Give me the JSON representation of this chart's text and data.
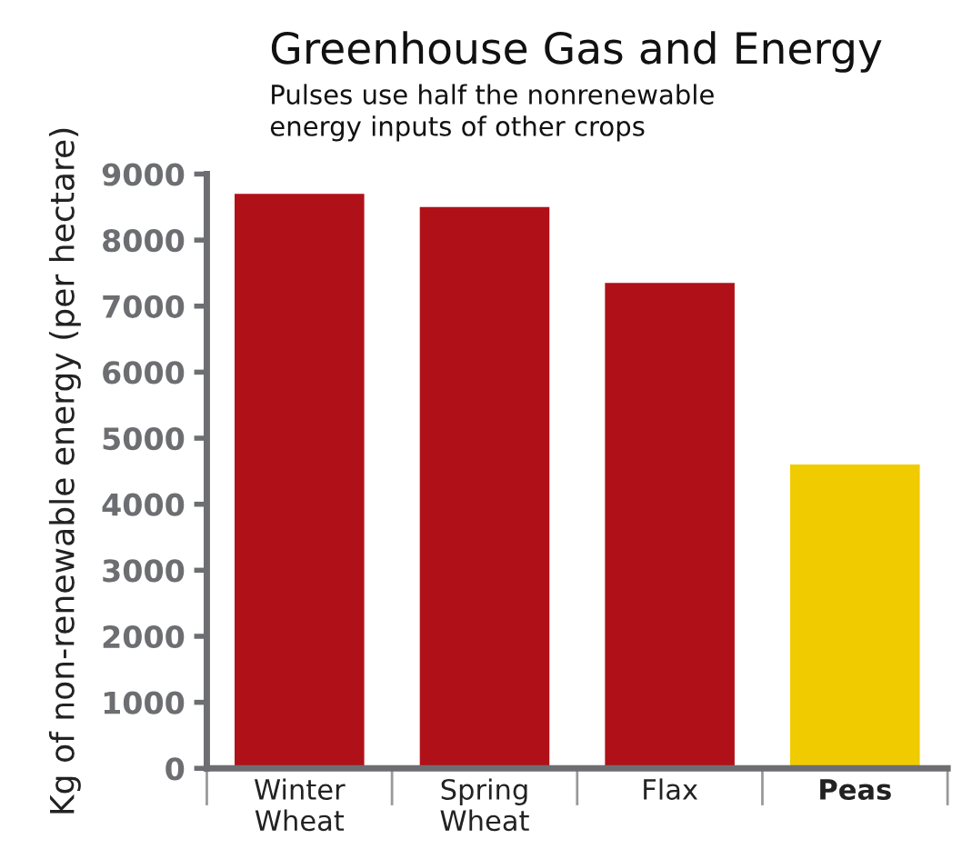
{
  "chart_data": {
    "type": "bar",
    "title": "Greenhouse Gas and Energy",
    "subtitle": "Pulses use half the nonrenewable\nenergy inputs of other crops",
    "ylabel": "Kg of non-renewable energy (per hectare)",
    "categories": [
      "Winter\nWheat",
      "Spring\nWheat",
      "Flax",
      "Peas"
    ],
    "values": [
      8700,
      8500,
      7350,
      4600
    ],
    "colors": [
      "#b01118",
      "#b01118",
      "#b01118",
      "#f0cb00"
    ],
    "ylim": [
      0,
      9000
    ],
    "yticks": [
      0,
      1000,
      2000,
      3000,
      4000,
      5000,
      6000,
      7000,
      8000,
      9000
    ],
    "grid": false
  }
}
